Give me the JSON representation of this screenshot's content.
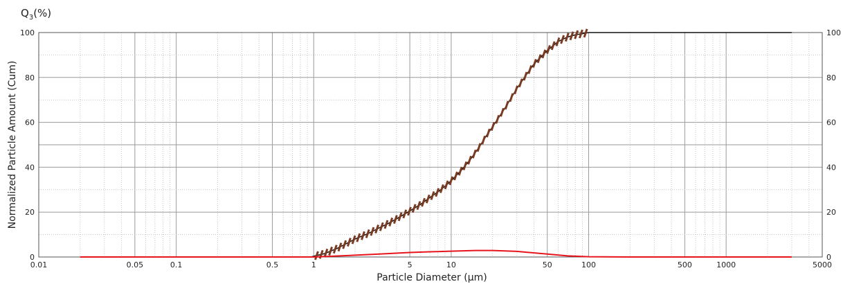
{
  "chart_data": {
    "type": "line",
    "unit_label": "Q",
    "unit_label_sub": "3",
    "unit_label_suffix": "(%)",
    "xlabel": "Particle Diameter (µm)",
    "ylabel": "Normalized Particle Amount (Cum)",
    "xscale": "log",
    "xlim": [
      0.01,
      5000
    ],
    "ylim": [
      0,
      100
    ],
    "grid": true,
    "x_ticks": [
      {
        "value": 0.01,
        "label": "0.01"
      },
      {
        "value": 0.05,
        "label": "0.05"
      },
      {
        "value": 0.1,
        "label": "0.1"
      },
      {
        "value": 0.5,
        "label": "0.5"
      },
      {
        "value": 1,
        "label": "1"
      },
      {
        "value": 5,
        "label": "5"
      },
      {
        "value": 10,
        "label": "10"
      },
      {
        "value": 50,
        "label": "50"
      },
      {
        "value": 100,
        "label": "100"
      },
      {
        "value": 500,
        "label": "500"
      },
      {
        "value": 1000,
        "label": "1000"
      },
      {
        "value": 5000,
        "label": "5000"
      }
    ],
    "y_ticks": [
      {
        "value": 0,
        "label": "0"
      },
      {
        "value": 20,
        "label": "20"
      },
      {
        "value": 40,
        "label": "40"
      },
      {
        "value": 60,
        "label": "60"
      },
      {
        "value": 80,
        "label": "80"
      },
      {
        "value": 100,
        "label": "100"
      }
    ],
    "series": [
      {
        "kind": "cumulative",
        "color": "#111111",
        "marker_color": "#7a3b22",
        "x": [
          0.02,
          0.5,
          0.95,
          1.2,
          1.5,
          2,
          2.5,
          3,
          3.5,
          4,
          5,
          6,
          7,
          8,
          9,
          10,
          12,
          14,
          16,
          18,
          20,
          25,
          30,
          35,
          40,
          50,
          60,
          70,
          80,
          90,
          100,
          200,
          500,
          1000,
          3000
        ],
        "y": [
          0,
          0,
          0,
          1.5,
          4,
          8,
          10.5,
          13,
          15,
          17,
          20.5,
          23.5,
          26.5,
          29,
          31.5,
          34,
          39,
          44,
          49,
          54,
          58,
          67,
          75,
          81,
          86,
          92,
          96,
          98,
          99,
          99.5,
          100,
          100,
          100,
          100,
          100
        ]
      },
      {
        "kind": "frequency",
        "color": "#e8141c",
        "x": [
          0.02,
          0.5,
          1,
          2,
          3,
          5,
          7,
          10,
          15,
          20,
          30,
          50,
          70,
          100,
          200,
          3000
        ],
        "y": [
          0,
          0,
          0,
          0.8,
          1.3,
          2,
          2.3,
          2.6,
          2.9,
          2.9,
          2.5,
          1.3,
          0.5,
          0.1,
          0,
          0
        ]
      }
    ]
  }
}
